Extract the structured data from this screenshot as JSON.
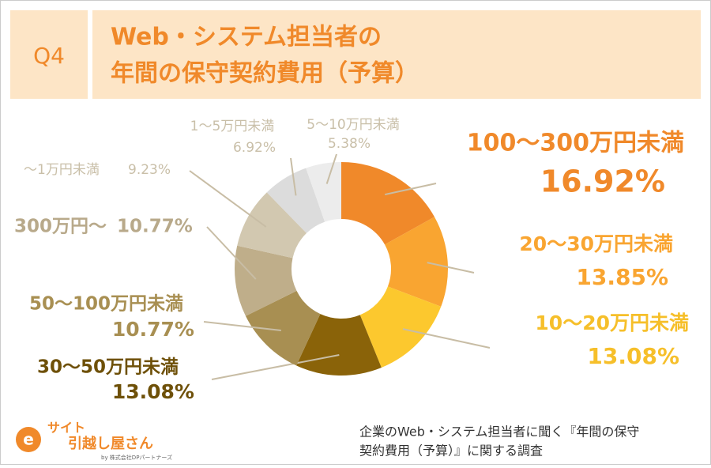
{
  "header": {
    "badge": "Q4",
    "title_lines": [
      "Web・システム担当者の",
      "年間の保守契約費用（予算）"
    ]
  },
  "chart_data": {
    "type": "pie",
    "donut": true,
    "categories": [
      "100〜300万円未満",
      "20〜30万円未満",
      "10〜20万円未満",
      "30〜50万円未満",
      "50〜100万円未満",
      "300万円〜",
      "〜1万円未満",
      "1〜5万円未満",
      "5〜10万円未満"
    ],
    "values": [
      16.92,
      13.85,
      13.08,
      13.08,
      10.77,
      10.77,
      9.23,
      6.92,
      5.38
    ],
    "value_labels": [
      "16.92%",
      "13.85%",
      "13.08%",
      "13.08%",
      "10.77%",
      "10.77%",
      "9.23%",
      "6.92%",
      "5.38%"
    ],
    "colors": [
      "#f0892a",
      "#f9a531",
      "#fcc82e",
      "#8a6309",
      "#a88f52",
      "#bfae8a",
      "#d2c8b0",
      "#dcdcdc",
      "#ececec"
    ],
    "label_colors": [
      "#f0892a",
      "#f9a531",
      "#f6bf2a",
      "#6e5008",
      "#a88f52",
      "#b8a98a",
      "#c9bfa8",
      "#c9bfa8",
      "#c9bfa8"
    ]
  },
  "footer": {
    "note_lines": [
      "企業のWeb・システム担当者に聞く『年間の保守",
      "契約費用（予算）』に関する調査"
    ],
    "logo_lines": [
      "サイト",
      "引越し屋さん"
    ],
    "logo_by": "by 株式会社DPパートナーズ"
  }
}
